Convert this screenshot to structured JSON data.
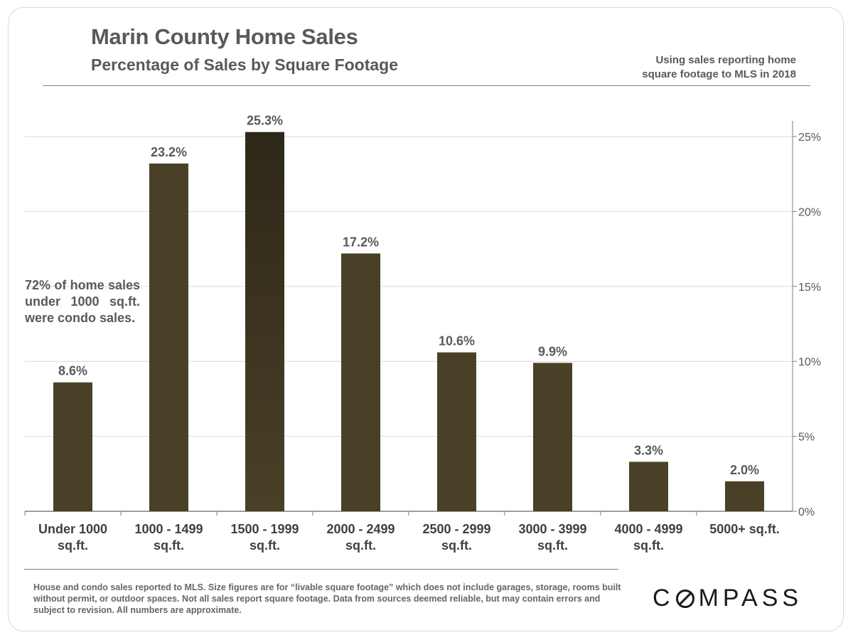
{
  "header": {
    "title": "Marin County Home Sales",
    "subtitle": "Percentage of Sales by Square Footage",
    "note_line1": "Using sales reporting home",
    "note_line2": "square footage to MLS in 2018"
  },
  "annotation": "72% of home sales under 1000 sq.ft. were condo sales.",
  "footer": {
    "footnote": "House and condo sales reported to MLS. Size figures are for “livable square footage” which does not include garages, storage, rooms built without permit, or outdoor spaces. Not all sales report square footage. Data from sources deemed reliable, but may contain errors and subject to revision.  All numbers are approximate.",
    "logo_pre": "C",
    "logo_post": "MPASS"
  },
  "chart_data": {
    "type": "bar",
    "title": "Marin County Home Sales",
    "subtitle": "Percentage of Sales by Square Footage",
    "categories": [
      [
        "Under 1000",
        "sq.ft."
      ],
      [
        "1000 - 1499",
        "sq.ft."
      ],
      [
        "1500 - 1999",
        "sq.ft."
      ],
      [
        "2000 - 2499",
        "sq.ft."
      ],
      [
        "2500 - 2999",
        "sq.ft."
      ],
      [
        "3000 - 3999",
        "sq.ft."
      ],
      [
        "4000 - 4999",
        "sq.ft."
      ],
      [
        "5000+ sq.ft.",
        ""
      ]
    ],
    "values": [
      8.6,
      23.2,
      25.3,
      17.2,
      10.6,
      9.9,
      3.3,
      2.0
    ],
    "value_labels": [
      "8.6%",
      "23.2%",
      "25.3%",
      "17.2%",
      "10.6%",
      "9.9%",
      "3.3%",
      "2.0%"
    ],
    "ylim": [
      0,
      25
    ],
    "yticks": [
      0,
      5,
      10,
      15,
      20,
      25
    ],
    "ytick_labels": [
      "0%",
      "5%",
      "10%",
      "15%",
      "20%",
      "25%"
    ],
    "y_axis_side": "right",
    "grid": true,
    "legend": "none",
    "colors": {
      "bar": "#4a4028",
      "bar_highlight": "#2e2818",
      "grid": "#d9d9d9",
      "axis": "#7f7f7f"
    },
    "highlight_index": 2
  }
}
